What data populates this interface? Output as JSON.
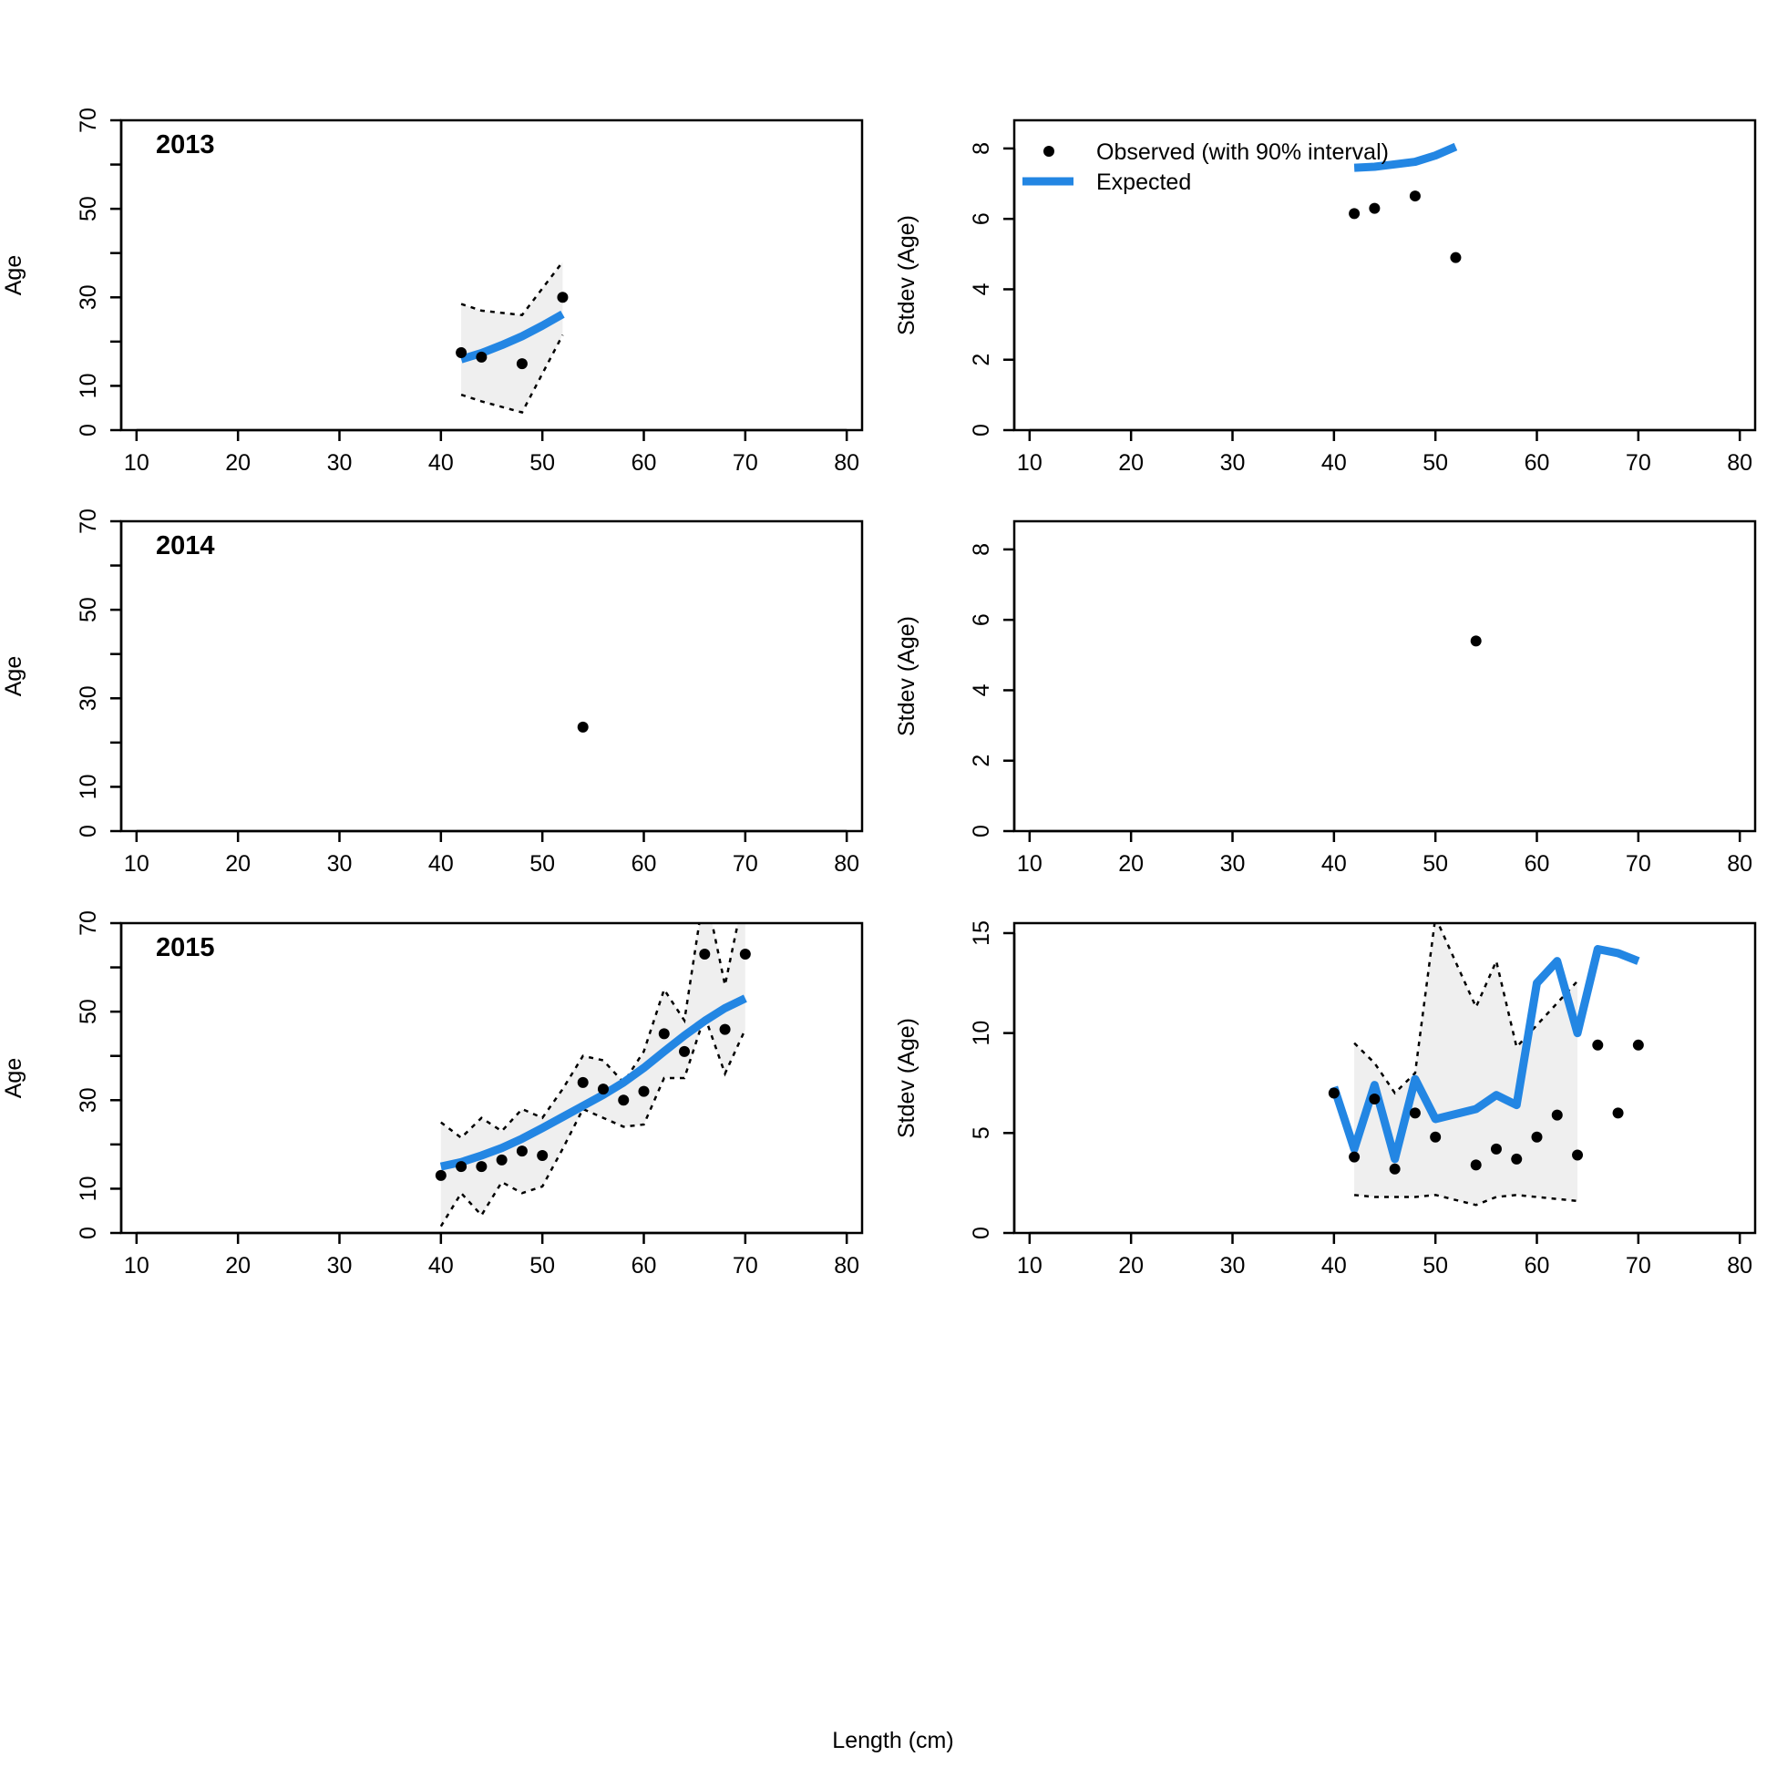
{
  "figure": {
    "xlabel": "Length (cm)"
  },
  "legend": {
    "observed_label": "Observed (with 90% interval)",
    "expected_label": "Expected"
  },
  "colors": {
    "expected": "#2386e3",
    "observed": "#000000",
    "interval_fill": "#efefef",
    "interval_line": "#000000"
  },
  "chart_data": [
    {
      "type": "line",
      "year": "2013",
      "ylabel": "Age",
      "xlim": [
        10,
        80
      ],
      "ylim": [
        0,
        70
      ],
      "xticks": [
        10,
        20,
        30,
        40,
        50,
        60,
        70,
        80
      ],
      "yticks": [
        0,
        10,
        30,
        50,
        70
      ],
      "observed": {
        "x": [
          42,
          44,
          48,
          52
        ],
        "y": [
          17.5,
          16.5,
          15,
          30
        ]
      },
      "expected": {
        "x": [
          42,
          44,
          46,
          48,
          50,
          52
        ],
        "y": [
          16,
          17.4,
          19.2,
          21.2,
          23.6,
          26.2
        ]
      },
      "interval": {
        "x": [
          42,
          44,
          48,
          52
        ],
        "lower": [
          8,
          6.5,
          4,
          21.5
        ],
        "upper": [
          28.5,
          27,
          26,
          38
        ]
      }
    },
    {
      "type": "line",
      "year": "",
      "ylabel": "Stdev (Age)",
      "xlim": [
        10,
        80
      ],
      "ylim": [
        0,
        8.8
      ],
      "xticks": [
        10,
        20,
        30,
        40,
        50,
        60,
        70,
        80
      ],
      "yticks": [
        0,
        2,
        4,
        6,
        8
      ],
      "legend": true,
      "observed": {
        "x": [
          42,
          44,
          48,
          52
        ],
        "y": [
          6.15,
          6.3,
          6.65,
          4.9
        ]
      },
      "expected": {
        "x": [
          42,
          44,
          46,
          48,
          50,
          52
        ],
        "y": [
          7.45,
          7.48,
          7.55,
          7.62,
          7.8,
          8.05
        ]
      },
      "interval": null
    },
    {
      "type": "line",
      "year": "2014",
      "ylabel": "Age",
      "xlim": [
        10,
        80
      ],
      "ylim": [
        0,
        70
      ],
      "xticks": [
        10,
        20,
        30,
        40,
        50,
        60,
        70,
        80
      ],
      "yticks": [
        0,
        10,
        30,
        50,
        70
      ],
      "observed": {
        "x": [
          54
        ],
        "y": [
          23.5
        ]
      },
      "expected": null,
      "interval": null
    },
    {
      "type": "line",
      "year": "",
      "ylabel": "Stdev (Age)",
      "xlim": [
        10,
        80
      ],
      "ylim": [
        0,
        8.8
      ],
      "xticks": [
        10,
        20,
        30,
        40,
        50,
        60,
        70,
        80
      ],
      "yticks": [
        0,
        2,
        4,
        6,
        8
      ],
      "observed": {
        "x": [
          54
        ],
        "y": [
          5.4
        ]
      },
      "expected": null,
      "interval": null
    },
    {
      "type": "line",
      "year": "2015",
      "ylabel": "Age",
      "xlim": [
        10,
        80
      ],
      "ylim": [
        0,
        70
      ],
      "xticks": [
        10,
        20,
        30,
        40,
        50,
        60,
        70,
        80
      ],
      "yticks": [
        0,
        10,
        30,
        50,
        70
      ],
      "observed": {
        "x": [
          40,
          42,
          44,
          46,
          48,
          50,
          54,
          56,
          58,
          60,
          62,
          64,
          66,
          68,
          70
        ],
        "y": [
          13,
          15,
          15,
          16.5,
          18.5,
          17.5,
          34,
          32.5,
          30,
          32,
          45,
          41,
          63,
          46,
          63
        ]
      },
      "expected": {
        "x": [
          40,
          42,
          44,
          46,
          48,
          50,
          52,
          54,
          56,
          58,
          60,
          62,
          64,
          66,
          68,
          70
        ],
        "y": [
          15,
          16,
          17.5,
          19.2,
          21.3,
          23.7,
          26.2,
          28.7,
          31.2,
          34,
          37.3,
          41,
          44.6,
          47.9,
          50.8,
          53
        ]
      },
      "interval": {
        "x": [
          40,
          42,
          44,
          46,
          48,
          50,
          52,
          54,
          56,
          58,
          60,
          62,
          64,
          66,
          68,
          70
        ],
        "lower": [
          1.5,
          9,
          4,
          11.5,
          9,
          10.5,
          19,
          28,
          26,
          24,
          24.5,
          35,
          35,
          49,
          36,
          46
        ],
        "upper": [
          25,
          21.5,
          26,
          23,
          28,
          26,
          32.5,
          40,
          39,
          34,
          41,
          55,
          48,
          78,
          56,
          78
        ]
      }
    },
    {
      "type": "line",
      "year": "",
      "ylabel": "Stdev (Age)",
      "xlim": [
        10,
        80
      ],
      "ylim": [
        0,
        15.5
      ],
      "xticks": [
        10,
        20,
        30,
        40,
        50,
        60,
        70,
        80
      ],
      "yticks": [
        0,
        5,
        10,
        15
      ],
      "observed": {
        "x": [
          40,
          42,
          44,
          46,
          48,
          50,
          54,
          56,
          58,
          60,
          62,
          64,
          66,
          68,
          70
        ],
        "y": [
          7,
          3.8,
          6.7,
          3.2,
          6,
          4.8,
          3.4,
          4.2,
          3.7,
          4.8,
          5.9,
          3.9,
          9.4,
          6,
          9.4
        ]
      },
      "expected": {
        "x": [
          40,
          42,
          44,
          46,
          48,
          50,
          54,
          56,
          58,
          60,
          62,
          64,
          66,
          68,
          70
        ],
        "y": [
          7.3,
          4.2,
          7.4,
          3.7,
          7.7,
          5.7,
          6.2,
          6.9,
          6.4,
          12.5,
          13.6,
          10,
          14.2,
          14,
          13.6
        ]
      },
      "interval": {
        "x": [
          42,
          44,
          46,
          48,
          50,
          54,
          56,
          58,
          60,
          62,
          64
        ],
        "lower": [
          1.9,
          1.8,
          1.8,
          1.8,
          1.9,
          1.4,
          1.8,
          1.9,
          1.8,
          1.7,
          1.6
        ],
        "upper": [
          9.5,
          8.5,
          7,
          8,
          15.8,
          11.3,
          13.6,
          9.3,
          10.4,
          11.5,
          12.6
        ]
      }
    }
  ]
}
